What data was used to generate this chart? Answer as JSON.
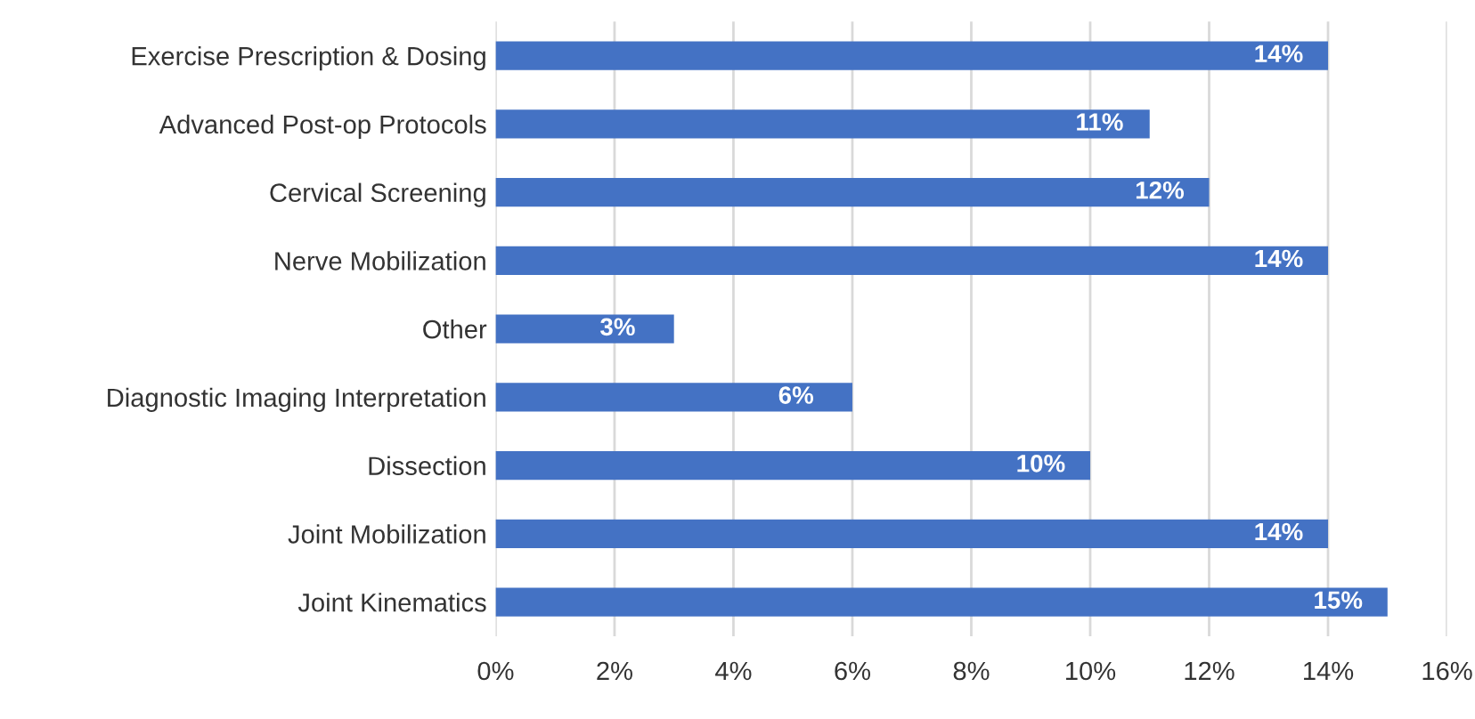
{
  "chart_data": {
    "type": "bar",
    "orientation": "horizontal",
    "categories": [
      "Exercise Prescription & Dosing",
      "Advanced Post-op Protocols",
      "Cervical Screening",
      "Nerve Mobilization",
      "Other",
      "Diagnostic Imaging Interpretation",
      "Dissection",
      "Joint Mobilization",
      "Joint Kinematics"
    ],
    "values": [
      14,
      11,
      12,
      14,
      3,
      6,
      10,
      14,
      15
    ],
    "value_labels": [
      "14%",
      "11%",
      "12%",
      "14%",
      "3%",
      "6%",
      "10%",
      "14%",
      "15%"
    ],
    "color": "#4472c4",
    "xlim": [
      0,
      16
    ],
    "xticks": [
      {
        "value": 0,
        "label": "0%"
      },
      {
        "value": 2,
        "label": "2%"
      },
      {
        "value": 4,
        "label": "4%"
      },
      {
        "value": 6,
        "label": "6%"
      },
      {
        "value": 8,
        "label": "8%"
      },
      {
        "value": 10,
        "label": "10%"
      },
      {
        "value": 12,
        "label": "12%"
      },
      {
        "value": 14,
        "label": "14%"
      },
      {
        "value": 16,
        "label": "16%"
      }
    ],
    "grid": "x"
  }
}
